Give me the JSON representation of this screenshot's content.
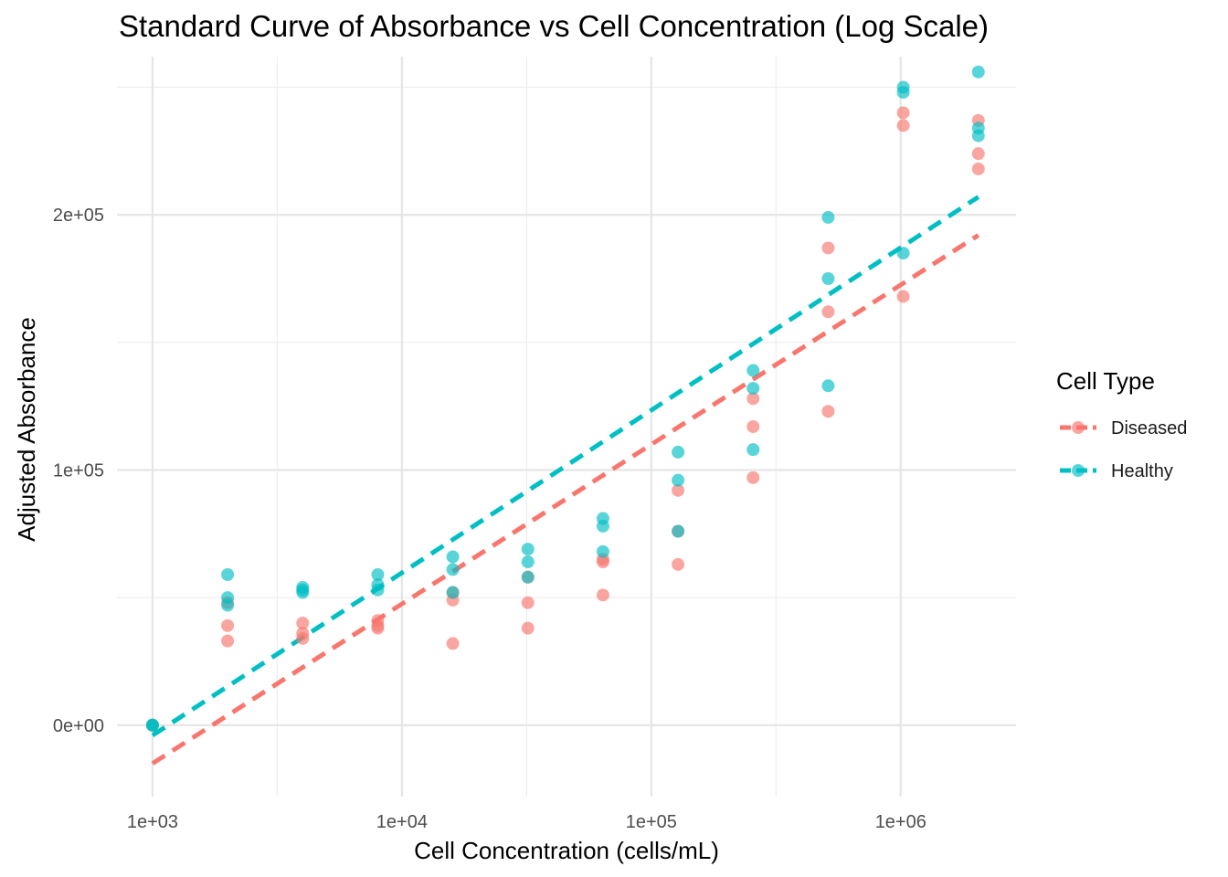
{
  "chart_data": {
    "type": "scatter",
    "title": "Standard Curve of Absorbance vs Cell Concentration (Log Scale)",
    "xlabel": "Cell Concentration (cells/mL)",
    "ylabel": "Adjusted Absorbance",
    "x_scale": "log10",
    "xlim": [
      720,
      2900000
    ],
    "ylim": [
      -28000,
      262000
    ],
    "x_ticks": [
      1000,
      10000,
      100000,
      1000000
    ],
    "x_tick_labels": [
      "1e+03",
      "1e+04",
      "1e+05",
      "1e+06"
    ],
    "y_ticks": [
      0,
      100000,
      200000
    ],
    "y_tick_labels": [
      "0e+00",
      "1e+05",
      "2e+05"
    ],
    "grid": true,
    "legend": {
      "title": "Cell Type",
      "position": "right"
    },
    "series": [
      {
        "name": "Diseased",
        "color": "#F8766D",
        "points": [
          [
            1000,
            0
          ],
          [
            1000,
            0
          ],
          [
            1000,
            0
          ],
          [
            2000,
            48000
          ],
          [
            2000,
            39000
          ],
          [
            2000,
            33000
          ],
          [
            4000,
            40000
          ],
          [
            4000,
            36000
          ],
          [
            4000,
            34000
          ],
          [
            8000,
            41000
          ],
          [
            8000,
            39000
          ],
          [
            8000,
            38000
          ],
          [
            16000,
            52000
          ],
          [
            16000,
            49000
          ],
          [
            16000,
            32000
          ],
          [
            32000,
            58000
          ],
          [
            32000,
            48000
          ],
          [
            32000,
            38000
          ],
          [
            64000,
            65000
          ],
          [
            64000,
            64000
          ],
          [
            64000,
            51000
          ],
          [
            128000,
            92000
          ],
          [
            128000,
            76000
          ],
          [
            128000,
            63000
          ],
          [
            256000,
            128000
          ],
          [
            256000,
            117000
          ],
          [
            256000,
            97000
          ],
          [
            512000,
            187000
          ],
          [
            512000,
            162000
          ],
          [
            512000,
            123000
          ],
          [
            1024000,
            240000
          ],
          [
            1024000,
            235000
          ],
          [
            1024000,
            168000
          ],
          [
            2048000,
            237000
          ],
          [
            2048000,
            224000
          ],
          [
            2048000,
            218000
          ]
        ],
        "fit": {
          "x": [
            1000,
            2048000
          ],
          "y": [
            -15000,
            192000
          ]
        }
      },
      {
        "name": "Healthy",
        "color": "#00BFC4",
        "points": [
          [
            1000,
            0
          ],
          [
            1000,
            0
          ],
          [
            1000,
            0
          ],
          [
            2000,
            59000
          ],
          [
            2000,
            50000
          ],
          [
            2000,
            47000
          ],
          [
            4000,
            54000
          ],
          [
            4000,
            53000
          ],
          [
            4000,
            52000
          ],
          [
            8000,
            59000
          ],
          [
            8000,
            55000
          ],
          [
            8000,
            53000
          ],
          [
            16000,
            66000
          ],
          [
            16000,
            61000
          ],
          [
            16000,
            52000
          ],
          [
            32000,
            69000
          ],
          [
            32000,
            64000
          ],
          [
            32000,
            58000
          ],
          [
            64000,
            81000
          ],
          [
            64000,
            78000
          ],
          [
            64000,
            68000
          ],
          [
            128000,
            107000
          ],
          [
            128000,
            96000
          ],
          [
            128000,
            76000
          ],
          [
            256000,
            139000
          ],
          [
            256000,
            132000
          ],
          [
            256000,
            108000
          ],
          [
            512000,
            199000
          ],
          [
            512000,
            175000
          ],
          [
            512000,
            133000
          ],
          [
            1024000,
            250000
          ],
          [
            1024000,
            248000
          ],
          [
            1024000,
            185000
          ],
          [
            2048000,
            256000
          ],
          [
            2048000,
            234000
          ],
          [
            2048000,
            231000
          ]
        ],
        "fit": {
          "x": [
            1000,
            2048000
          ],
          "y": [
            -4000,
            207000
          ]
        }
      }
    ]
  }
}
